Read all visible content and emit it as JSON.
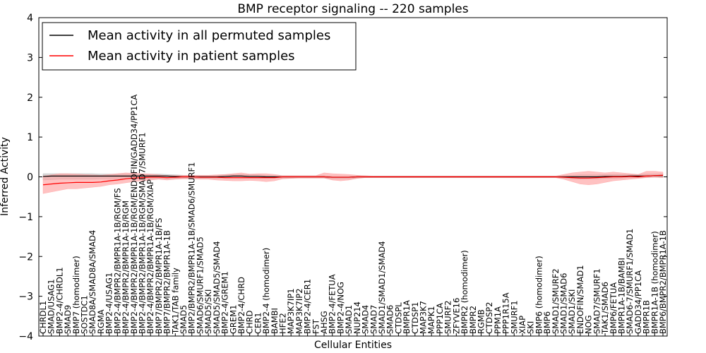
{
  "chart_data": {
    "type": "line",
    "title": "BMP receptor signaling -- 220 samples",
    "xlabel": "Cellular Entities",
    "ylabel": "Inferred Activity",
    "ylim": [
      -4,
      4
    ],
    "yticks": [
      "4",
      "3",
      "2",
      "1",
      "0",
      "−1",
      "−2",
      "−3",
      "−4"
    ],
    "grid": false,
    "legend_position": "top-left",
    "categories": [
      "CHRDL1",
      "SMAD/USAG1",
      "BMP2-4/CHRDL1",
      "SMAD9",
      "BMP7 (homodimer)",
      "SOSTDC1",
      "SMAD8A/SMAD8A/SMAD4",
      "RGMA",
      "BMP2-4/USAG1",
      "BMP2-4/BMPR2/BMPR1A-1B/RGM/FS",
      "BMP2-4/BMPR2/BMPR1A-1B/RGM",
      "BMP2-4/BMPR2/BMPR1A-1B/RGM/ENDOFIN/GADD34/PP1CA",
      "BMP2-4/BMPR2/BMPR1A-1B/RGM/SMAD7/SMURF1",
      "BMP2-4/BMPR2/BMPR1A-1B/RGM/XIAP",
      "BMP7/BMPR2/BMPR1A-1B/FS",
      "BMP7/BMPR2/BMPR1A-1B",
      "TAK1/TAB family",
      "SMAD5",
      "BMP2/BMPR2/BMPR1A-1B/SMAD6/SMURF1",
      "SMAD6/SMURF1/SMAD5",
      "SMAD5/SKI",
      "SMAD5/SMAD5/SMAD4",
      "BMP2-4/GREM1",
      "GREM1",
      "BMP2-4/CHRD",
      "CHRD",
      "CER1",
      "BMP2-4 (homodimer)",
      "BAMBI",
      "HFE2",
      "MAP3K7IP1",
      "MAP3K7IP2",
      "BMP2-4/CER1",
      "FST",
      "AHSG",
      "BMP2-4/FETUA",
      "BMP2-4/NOG",
      "SMAD1",
      "NUP214",
      "SMAD4",
      "SMAD7",
      "SMAD1/SMAD1/SMAD4",
      "SMAD6",
      "CTDSPL",
      "BMPR1A",
      "CTDSP1",
      "MAP3K7",
      "MAPK1",
      "PPP1CA",
      "SMURF2",
      "ZFYVE16",
      "BMPR2 (homodimer)",
      "BMPR2",
      "RGMB",
      "CTDSP2",
      "PPM1A",
      "PPP1R15A",
      "SMURF1",
      "XIAP",
      "SKI",
      "BMP6 (homodimer)",
      "BMP6",
      "SMAD1/SMURF2",
      "SMAD1/SMAD6",
      "SMAD1/SKI",
      "ENDOFIN/SMAD1",
      "NOG",
      "SMAD7/SMURF1",
      "TAK1/SMAD6",
      "BMP6/FETUA",
      "BMPR1A-1B/BAMBI",
      "SMAD6-7/SMURF1/SMAD1",
      "GADD34/PP1CA",
      "BMPR1B",
      "BMPR1A-1B (homodimer)",
      "BMP6/BMPR2/BMPR1A-1B"
    ],
    "series": [
      {
        "name": "Mean activity in all permuted samples",
        "color": "#000000",
        "band_color": "#aaaaaa",
        "values": [
          0.01,
          0.02,
          0.02,
          0.02,
          0.02,
          0.02,
          0.02,
          0.02,
          0.02,
          0.02,
          0.02,
          0.02,
          0.02,
          0.02,
          0.02,
          0.02,
          0.01,
          0.0,
          0.0,
          0.0,
          0.0,
          0.0,
          0.01,
          0.02,
          0.02,
          0.01,
          0.01,
          0.0,
          0.0,
          0.0,
          0.0,
          0.0,
          0.0,
          0.0,
          0.0,
          -0.01,
          -0.01,
          -0.01,
          0.0,
          0.0,
          0.0,
          0.0,
          0.0,
          0.0,
          0.0,
          0.0,
          0.0,
          0.0,
          0.0,
          0.0,
          0.0,
          0.0,
          0.0,
          0.0,
          0.0,
          0.0,
          0.0,
          0.0,
          0.0,
          0.0,
          0.0,
          0.0,
          0.0,
          0.0,
          0.0,
          0.0,
          0.0,
          0.0,
          0.01,
          0.01,
          0.01,
          0.02,
          0.02,
          0.02,
          0.03,
          0.03
        ],
        "band_lower": [
          -0.08,
          -0.07,
          -0.06,
          -0.06,
          -0.06,
          -0.06,
          -0.06,
          -0.05,
          -0.05,
          -0.05,
          -0.05,
          -0.05,
          -0.05,
          -0.05,
          -0.05,
          -0.05,
          -0.05,
          -0.04,
          -0.04,
          -0.04,
          -0.04,
          -0.04,
          -0.03,
          -0.03,
          -0.03,
          -0.03,
          -0.03,
          -0.03,
          -0.03,
          -0.03,
          -0.03,
          -0.03,
          -0.03,
          -0.03,
          -0.03,
          -0.05,
          -0.05,
          -0.05,
          -0.03,
          -0.02,
          -0.02,
          -0.02,
          -0.02,
          -0.02,
          -0.02,
          -0.02,
          -0.02,
          -0.02,
          -0.02,
          -0.02,
          -0.02,
          -0.02,
          -0.02,
          -0.02,
          -0.02,
          -0.02,
          -0.02,
          -0.02,
          -0.02,
          -0.02,
          -0.02,
          -0.02,
          -0.02,
          -0.03,
          -0.05,
          -0.06,
          -0.05,
          -0.05,
          -0.04,
          -0.04,
          -0.03,
          -0.02,
          -0.02,
          -0.02,
          -0.01,
          -0.02
        ],
        "band_upper": [
          0.08,
          0.08,
          0.08,
          0.08,
          0.08,
          0.08,
          0.08,
          0.07,
          0.07,
          0.07,
          0.07,
          0.07,
          0.07,
          0.07,
          0.07,
          0.06,
          0.05,
          0.04,
          0.04,
          0.04,
          0.04,
          0.04,
          0.05,
          0.06,
          0.06,
          0.05,
          0.05,
          0.04,
          0.03,
          0.03,
          0.03,
          0.03,
          0.03,
          0.03,
          0.03,
          0.02,
          0.02,
          0.02,
          0.03,
          0.02,
          0.02,
          0.02,
          0.02,
          0.02,
          0.02,
          0.02,
          0.02,
          0.02,
          0.02,
          0.02,
          0.02,
          0.02,
          0.02,
          0.02,
          0.02,
          0.02,
          0.02,
          0.02,
          0.02,
          0.02,
          0.02,
          0.02,
          0.02,
          0.03,
          0.04,
          0.05,
          0.05,
          0.05,
          0.06,
          0.06,
          0.06,
          0.06,
          0.06,
          0.07,
          0.07,
          0.08
        ]
      },
      {
        "name": "Mean activity in patient samples",
        "color": "#ff0000",
        "band_color": "#ff9999",
        "values": [
          -0.2,
          -0.18,
          -0.16,
          -0.15,
          -0.14,
          -0.14,
          -0.14,
          -0.13,
          -0.1,
          -0.08,
          -0.05,
          -0.03,
          -0.02,
          -0.01,
          -0.01,
          -0.02,
          -0.01,
          0.0,
          0.0,
          -0.01,
          -0.01,
          -0.01,
          -0.02,
          -0.02,
          -0.02,
          -0.02,
          -0.02,
          -0.02,
          -0.02,
          0.0,
          0.0,
          0.0,
          0.0,
          0.0,
          0.0,
          -0.01,
          -0.01,
          -0.01,
          0.0,
          0.0,
          0.0,
          0.0,
          0.0,
          0.0,
          0.0,
          0.0,
          0.0,
          0.0,
          0.0,
          0.0,
          0.0,
          0.0,
          0.0,
          0.0,
          0.0,
          0.0,
          0.0,
          0.0,
          0.0,
          0.0,
          0.0,
          0.0,
          0.0,
          -0.01,
          -0.02,
          -0.03,
          -0.03,
          -0.02,
          -0.01,
          0.0,
          0.0,
          0.01,
          0.0,
          0.02,
          0.03,
          0.04
        ],
        "band_lower": [
          -0.42,
          -0.38,
          -0.34,
          -0.3,
          -0.3,
          -0.28,
          -0.26,
          -0.24,
          -0.2,
          -0.18,
          -0.15,
          -0.12,
          -0.1,
          -0.08,
          -0.06,
          -0.08,
          -0.06,
          -0.05,
          -0.05,
          -0.06,
          -0.06,
          -0.08,
          -0.09,
          -0.1,
          -0.1,
          -0.09,
          -0.1,
          -0.12,
          -0.1,
          -0.05,
          -0.04,
          -0.03,
          -0.03,
          -0.03,
          -0.03,
          -0.08,
          -0.1,
          -0.08,
          -0.04,
          -0.02,
          -0.02,
          -0.02,
          -0.02,
          -0.02,
          -0.02,
          -0.02,
          -0.02,
          -0.02,
          -0.02,
          -0.02,
          -0.02,
          -0.02,
          -0.02,
          -0.02,
          -0.02,
          -0.02,
          -0.02,
          -0.02,
          -0.02,
          -0.02,
          -0.02,
          -0.02,
          -0.02,
          -0.06,
          -0.12,
          -0.18,
          -0.2,
          -0.18,
          -0.14,
          -0.1,
          -0.08,
          -0.06,
          -0.04,
          -0.02,
          -0.01,
          -0.02
        ],
        "band_upper": [
          0.02,
          0.05,
          0.08,
          0.08,
          0.07,
          0.06,
          0.05,
          0.04,
          0.06,
          0.08,
          0.1,
          0.09,
          0.08,
          0.07,
          0.05,
          0.03,
          0.03,
          0.04,
          0.04,
          0.04,
          0.04,
          0.05,
          0.06,
          0.08,
          0.1,
          0.07,
          0.08,
          0.08,
          0.06,
          0.03,
          0.03,
          0.03,
          0.03,
          0.03,
          0.1,
          0.08,
          0.07,
          0.06,
          0.04,
          0.03,
          0.02,
          0.02,
          0.02,
          0.02,
          0.02,
          0.02,
          0.02,
          0.02,
          0.02,
          0.02,
          0.02,
          0.02,
          0.02,
          0.02,
          0.02,
          0.02,
          0.02,
          0.02,
          0.02,
          0.02,
          0.02,
          0.02,
          0.02,
          0.06,
          0.1,
          0.12,
          0.14,
          0.12,
          0.1,
          0.12,
          0.1,
          0.08,
          0.06,
          0.14,
          0.14,
          0.12
        ]
      }
    ]
  }
}
